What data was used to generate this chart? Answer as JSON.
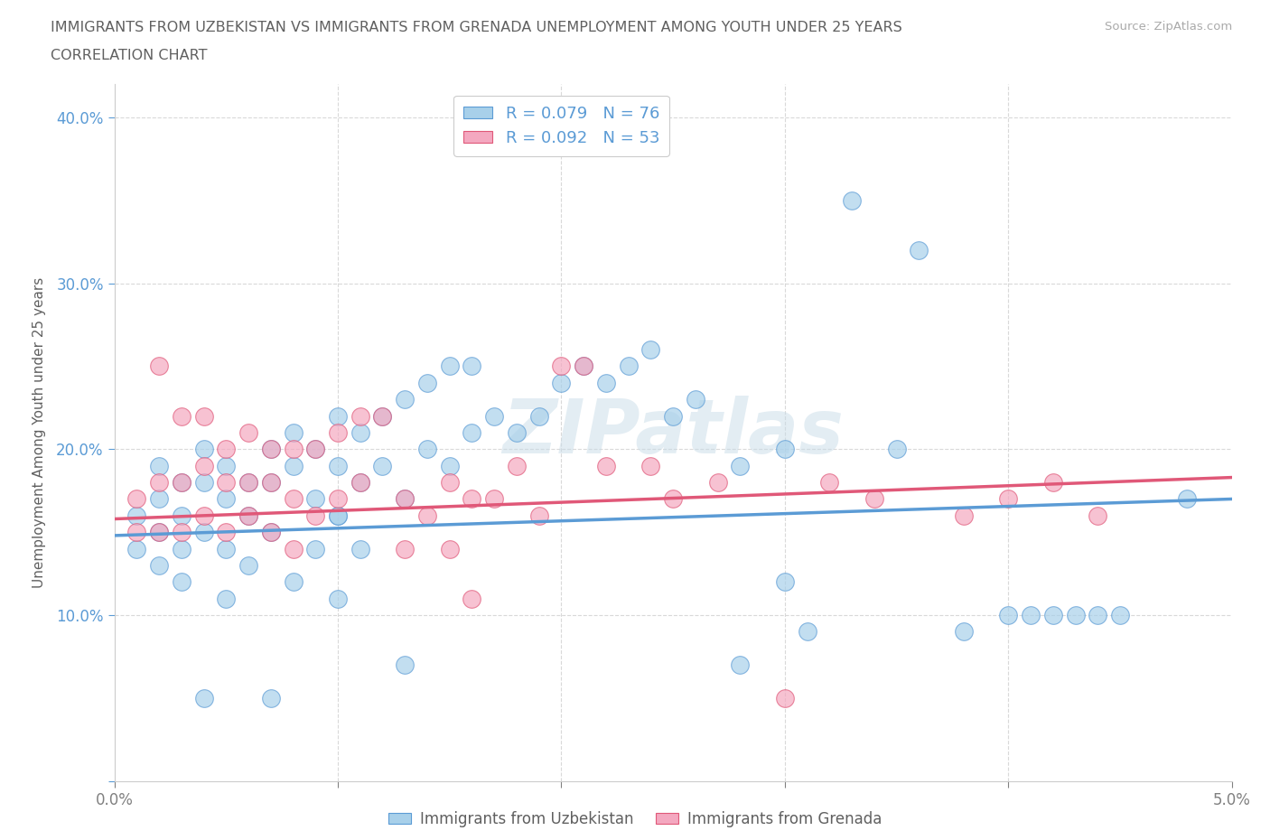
{
  "title_line1": "IMMIGRANTS FROM UZBEKISTAN VS IMMIGRANTS FROM GRENADA UNEMPLOYMENT AMONG YOUTH UNDER 25 YEARS",
  "title_line2": "CORRELATION CHART",
  "source": "Source: ZipAtlas.com",
  "ylabel": "Unemployment Among Youth under 25 years",
  "xlim": [
    0.0,
    0.05
  ],
  "ylim": [
    0.0,
    0.42
  ],
  "xtick_positions": [
    0.0,
    0.01,
    0.02,
    0.03,
    0.04,
    0.05
  ],
  "xticklabels": [
    "0.0%",
    "",
    "",
    "",
    "",
    "5.0%"
  ],
  "ytick_positions": [
    0.0,
    0.1,
    0.2,
    0.3,
    0.4
  ],
  "yticklabels": [
    "",
    "10.0%",
    "20.0%",
    "30.0%",
    "40.0%"
  ],
  "series1_label": "Immigrants from Uzbekistan",
  "series2_label": "Immigrants from Grenada",
  "legend1_text": "R = 0.079   N = 76",
  "legend2_text": "R = 0.092   N = 53",
  "series1_color": "#a8d0ea",
  "series2_color": "#f4a8c0",
  "trendline1_color": "#5b9bd5",
  "trendline2_color": "#e05878",
  "background_color": "#ffffff",
  "grid_color": "#d0d0d0",
  "watermark": "ZIPatlas",
  "watermark_color": "#c8dce8",
  "title_color": "#606060",
  "tick_color_y": "#5b9bd5",
  "tick_color_x": "#808080",
  "uzb_x": [
    0.001,
    0.001,
    0.002,
    0.002,
    0.002,
    0.002,
    0.003,
    0.003,
    0.003,
    0.003,
    0.004,
    0.004,
    0.004,
    0.005,
    0.005,
    0.005,
    0.005,
    0.006,
    0.006,
    0.006,
    0.007,
    0.007,
    0.007,
    0.008,
    0.008,
    0.008,
    0.009,
    0.009,
    0.009,
    0.01,
    0.01,
    0.01,
    0.01,
    0.011,
    0.011,
    0.011,
    0.012,
    0.012,
    0.013,
    0.013,
    0.014,
    0.014,
    0.015,
    0.015,
    0.016,
    0.016,
    0.017,
    0.018,
    0.019,
    0.02,
    0.021,
    0.022,
    0.023,
    0.024,
    0.025,
    0.026,
    0.028,
    0.03,
    0.03,
    0.031,
    0.033,
    0.035,
    0.036,
    0.038,
    0.04,
    0.041,
    0.042,
    0.043,
    0.044,
    0.045,
    0.004,
    0.007,
    0.01,
    0.013,
    0.028,
    0.048
  ],
  "uzb_y": [
    0.16,
    0.14,
    0.19,
    0.17,
    0.15,
    0.13,
    0.18,
    0.16,
    0.14,
    0.12,
    0.2,
    0.18,
    0.15,
    0.19,
    0.17,
    0.14,
    0.11,
    0.18,
    0.16,
    0.13,
    0.2,
    0.18,
    0.15,
    0.21,
    0.19,
    0.12,
    0.2,
    0.17,
    0.14,
    0.22,
    0.19,
    0.16,
    0.11,
    0.21,
    0.18,
    0.14,
    0.22,
    0.19,
    0.23,
    0.17,
    0.24,
    0.2,
    0.25,
    0.19,
    0.25,
    0.21,
    0.22,
    0.21,
    0.22,
    0.24,
    0.25,
    0.24,
    0.25,
    0.26,
    0.22,
    0.23,
    0.19,
    0.2,
    0.12,
    0.09,
    0.35,
    0.2,
    0.32,
    0.09,
    0.1,
    0.1,
    0.1,
    0.1,
    0.1,
    0.1,
    0.05,
    0.05,
    0.16,
    0.07,
    0.07,
    0.17
  ],
  "gren_x": [
    0.001,
    0.001,
    0.002,
    0.002,
    0.002,
    0.003,
    0.003,
    0.003,
    0.004,
    0.004,
    0.004,
    0.005,
    0.005,
    0.005,
    0.006,
    0.006,
    0.006,
    0.007,
    0.007,
    0.007,
    0.008,
    0.008,
    0.008,
    0.009,
    0.009,
    0.01,
    0.01,
    0.011,
    0.011,
    0.012,
    0.013,
    0.013,
    0.014,
    0.015,
    0.015,
    0.016,
    0.016,
    0.017,
    0.018,
    0.019,
    0.02,
    0.021,
    0.022,
    0.024,
    0.025,
    0.027,
    0.03,
    0.032,
    0.034,
    0.038,
    0.04,
    0.042,
    0.044
  ],
  "gren_y": [
    0.17,
    0.15,
    0.25,
    0.18,
    0.15,
    0.22,
    0.18,
    0.15,
    0.22,
    0.19,
    0.16,
    0.2,
    0.18,
    0.15,
    0.21,
    0.18,
    0.16,
    0.2,
    0.18,
    0.15,
    0.2,
    0.17,
    0.14,
    0.2,
    0.16,
    0.21,
    0.17,
    0.22,
    0.18,
    0.22,
    0.17,
    0.14,
    0.16,
    0.18,
    0.14,
    0.17,
    0.11,
    0.17,
    0.19,
    0.16,
    0.25,
    0.25,
    0.19,
    0.19,
    0.17,
    0.18,
    0.05,
    0.18,
    0.17,
    0.16,
    0.17,
    0.18,
    0.16
  ],
  "trendline1_x0": 0.0,
  "trendline1_y0": 0.148,
  "trendline1_x1": 0.05,
  "trendline1_y1": 0.17,
  "trendline2_x0": 0.0,
  "trendline2_y0": 0.158,
  "trendline2_x1": 0.05,
  "trendline2_y1": 0.183
}
